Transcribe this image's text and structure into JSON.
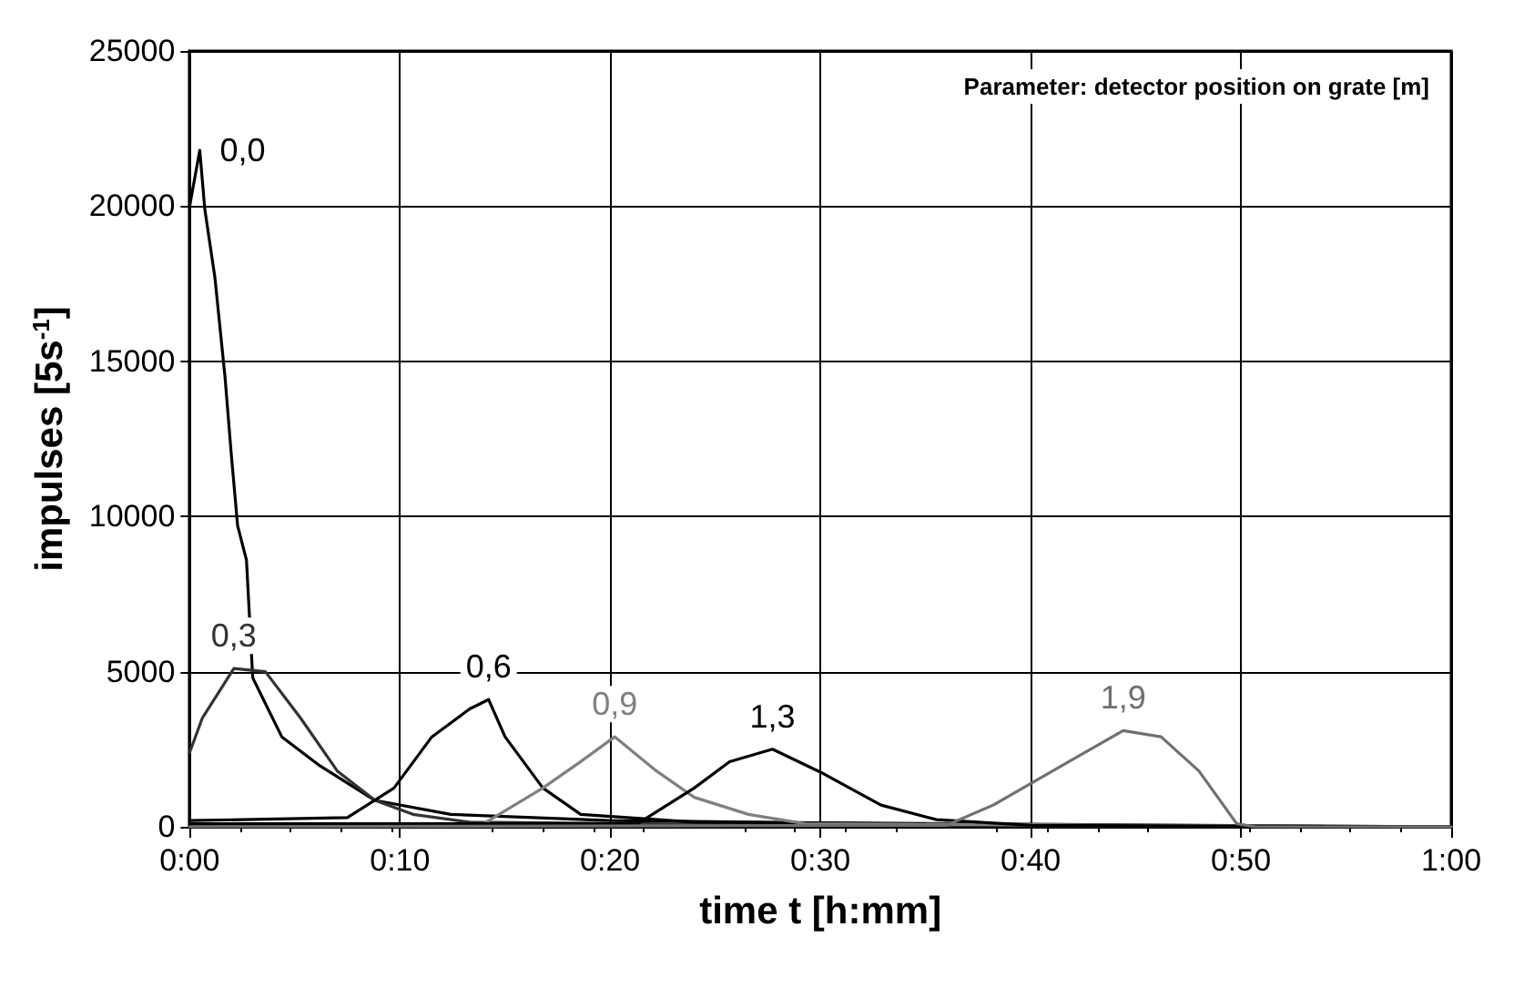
{
  "chart_data": {
    "type": "line",
    "xlabel": "time t [h:mm]",
    "ylabel": "impulses [5s$^{-1}$]",
    "annotations": [
      "Parameter: detector position on grate [m]"
    ],
    "xlim": [
      0,
      1
    ],
    "xticks": [
      {
        "value": 0,
        "label": "0:00"
      },
      {
        "value": 0.1667,
        "label": "0:10"
      },
      {
        "value": 0.3333,
        "label": "0:20"
      },
      {
        "value": 0.5,
        "label": "0:30"
      },
      {
        "value": 0.6667,
        "label": "0:40"
      },
      {
        "value": 0.8333,
        "label": "0:50"
      },
      {
        "value": 1,
        "label": "1:00"
      }
    ],
    "ylim": [
      0,
      25000
    ],
    "yticks": [
      0,
      5000,
      10000,
      15000,
      20000,
      25000
    ],
    "grid": true,
    "marker": "none",
    "series": [
      {
        "name": "0,0",
        "color": "#000000",
        "x": [
          0,
          0.008,
          0.012,
          0.02,
          0.028,
          0.033,
          0.038,
          0.045,
          0.05,
          0.073,
          0.102,
          0.147,
          0.207,
          0.333,
          0.667,
          1
        ],
        "values": [
          20000,
          21800,
          19900,
          17700,
          14500,
          12000,
          9700,
          8600,
          4800,
          2900,
          2000,
          850,
          400,
          200,
          50,
          0
        ]
      },
      {
        "name": "0,3",
        "color": "#333333",
        "x": [
          0,
          0.01,
          0.035,
          0.06,
          0.088,
          0.117,
          0.147,
          0.177,
          0.222,
          0.5,
          1
        ],
        "values": [
          2400,
          3500,
          5100,
          5000,
          3500,
          1800,
          850,
          400,
          150,
          50,
          0
        ]
      },
      {
        "name": "0,6",
        "color": "#000000",
        "x": [
          0,
          0.125,
          0.162,
          0.192,
          0.222,
          0.237,
          0.25,
          0.28,
          0.31,
          0.4,
          1
        ],
        "values": [
          200,
          300,
          1250,
          2900,
          3800,
          4100,
          2900,
          1250,
          400,
          150,
          0
        ]
      },
      {
        "name": "0,9",
        "color": "#808080",
        "x": [
          0,
          0.233,
          0.28,
          0.31,
          0.337,
          0.37,
          0.4,
          0.443,
          0.488,
          1
        ],
        "values": [
          100,
          100,
          1250,
          2100,
          2900,
          1800,
          950,
          400,
          100,
          0
        ]
      },
      {
        "name": "1,3",
        "color": "#000000",
        "x": [
          0,
          0.355,
          0.4,
          0.428,
          0.462,
          0.503,
          0.548,
          0.592,
          0.667,
          1
        ],
        "values": [
          100,
          100,
          1250,
          2100,
          2500,
          1700,
          700,
          230,
          50,
          0
        ]
      },
      {
        "name": "1,9",
        "color": "#707070",
        "x": [
          0,
          0.6,
          0.637,
          0.697,
          0.74,
          0.77,
          0.8,
          0.83,
          0.845,
          1
        ],
        "values": [
          0,
          50,
          700,
          2100,
          3100,
          2900,
          1800,
          100,
          0,
          0
        ]
      }
    ]
  }
}
